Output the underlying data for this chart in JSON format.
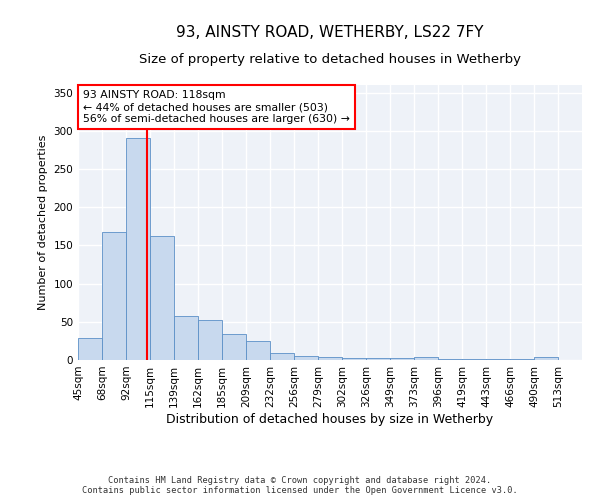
{
  "title": "93, AINSTY ROAD, WETHERBY, LS22 7FY",
  "subtitle": "Size of property relative to detached houses in Wetherby",
  "xlabel": "Distribution of detached houses by size in Wetherby",
  "ylabel": "Number of detached properties",
  "categories": [
    "45sqm",
    "68sqm",
    "92sqm",
    "115sqm",
    "139sqm",
    "162sqm",
    "185sqm",
    "209sqm",
    "232sqm",
    "256sqm",
    "279sqm",
    "302sqm",
    "326sqm",
    "349sqm",
    "373sqm",
    "396sqm",
    "419sqm",
    "443sqm",
    "466sqm",
    "490sqm",
    "513sqm"
  ],
  "bin_heights": [
    29,
    168,
    291,
    162,
    58,
    53,
    34,
    25,
    9,
    5,
    4,
    2,
    2,
    2,
    4,
    1,
    1,
    1,
    1,
    4
  ],
  "bar_color": "#c8d9ee",
  "bar_edge_color": "#5b8fc7",
  "vline_color": "red",
  "vline_x": 2.87,
  "annotation_text": "93 AINSTY ROAD: 118sqm\n← 44% of detached houses are smaller (503)\n56% of semi-detached houses are larger (630) →",
  "annotation_box_color": "white",
  "annotation_box_edge": "red",
  "background_color": "#eef2f8",
  "plot_bg_color": "#eef2f8",
  "grid_color": "white",
  "footer": "Contains HM Land Registry data © Crown copyright and database right 2024.\nContains public sector information licensed under the Open Government Licence v3.0.",
  "ylim": [
    0,
    360
  ],
  "yticks": [
    0,
    50,
    100,
    150,
    200,
    250,
    300,
    350
  ],
  "title_fontsize": 11,
  "subtitle_fontsize": 9.5,
  "tick_fontsize": 7.5,
  "ylabel_fontsize": 8,
  "xlabel_fontsize": 9
}
